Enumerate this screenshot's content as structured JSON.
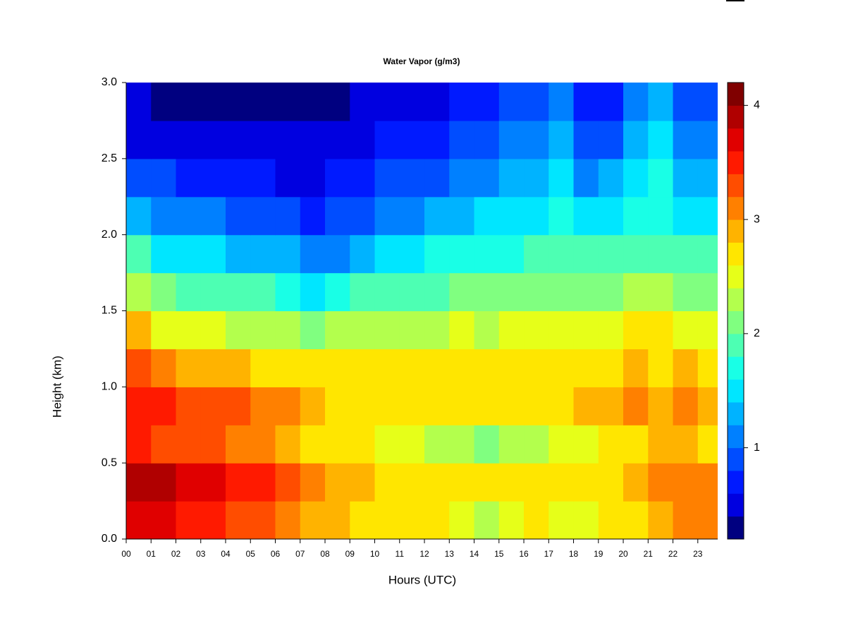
{
  "chart_data": {
    "type": "heatmap",
    "title": "Water Vapor (g/m3)",
    "x_label": "Hours (UTC)",
    "y_label": "Height (km)",
    "xlim": [
      0,
      23.8
    ],
    "ylim": [
      0,
      3
    ],
    "xticks": [
      {
        "value": 0,
        "label": "00"
      },
      {
        "value": 1,
        "label": "01"
      },
      {
        "value": 2,
        "label": "02"
      },
      {
        "value": 3,
        "label": "03"
      },
      {
        "value": 4,
        "label": "04"
      },
      {
        "value": 5,
        "label": "05"
      },
      {
        "value": 6,
        "label": "06"
      },
      {
        "value": 7,
        "label": "07"
      },
      {
        "value": 8,
        "label": "08"
      },
      {
        "value": 9,
        "label": "09"
      },
      10,
      11,
      12,
      13,
      14,
      15,
      16,
      17,
      18,
      19,
      20,
      21,
      22,
      23
    ],
    "yticks": [
      {
        "value": 0,
        "label": "0.0"
      },
      0.5,
      {
        "value": 1,
        "label": "1.0"
      },
      1.5,
      {
        "value": 2,
        "label": "2.0"
      },
      2.5,
      {
        "value": 3,
        "label": "3.0"
      }
    ],
    "zlim": [
      0.2,
      4.2
    ],
    "zticks": [
      1,
      2,
      3,
      4
    ],
    "colors": [
      "#000080",
      "#0000E0",
      "#001AFF",
      "#004DFF",
      "#0080FF",
      "#00B3FF",
      "#00E6FF",
      "#19FFE6",
      "#4DFFB3",
      "#80FF80",
      "#B3FF4D",
      "#E6FF19",
      "#FFE600",
      "#FFB300",
      "#FF8000",
      "#FF4D00",
      "#FF1A00",
      "#E00000",
      "#B00000",
      "#800000"
    ],
    "x": [
      0,
      1,
      2,
      3,
      4,
      5,
      6,
      7,
      8,
      9,
      10,
      11,
      12,
      13,
      14,
      15,
      16,
      17,
      18,
      19,
      20,
      21,
      22,
      23
    ],
    "y": [
      0,
      0.25,
      0.5,
      0.75,
      1,
      1.25,
      1.5,
      1.75,
      2,
      2.25,
      2.5,
      2.75
    ],
    "values": [
      [
        3.6,
        3.6,
        3.5,
        3.4,
        3.3,
        3.2,
        3.0,
        2.9,
        2.8,
        2.7,
        2.6,
        2.6,
        2.6,
        2.5,
        2.3,
        2.4,
        2.6,
        2.5,
        2.4,
        2.6,
        2.7,
        2.8,
        3.0,
        3.0
      ],
      [
        3.8,
        3.8,
        3.7,
        3.6,
        3.5,
        3.4,
        3.2,
        3.0,
        2.9,
        2.8,
        2.7,
        2.7,
        2.7,
        2.6,
        2.6,
        2.6,
        2.7,
        2.6,
        2.6,
        2.7,
        2.8,
        3.0,
        3.1,
        3.0
      ],
      [
        3.4,
        3.3,
        3.2,
        3.2,
        3.1,
        3.0,
        2.9,
        2.7,
        2.6,
        2.6,
        2.5,
        2.4,
        2.3,
        2.2,
        2.1,
        2.2,
        2.3,
        2.4,
        2.5,
        2.6,
        2.7,
        2.8,
        2.8,
        2.7
      ],
      [
        3.5,
        3.4,
        3.3,
        3.3,
        3.2,
        3.1,
        3.0,
        2.8,
        2.7,
        2.7,
        2.7,
        2.6,
        2.6,
        2.6,
        2.6,
        2.6,
        2.7,
        2.7,
        2.9,
        2.9,
        3.0,
        2.9,
        3.0,
        2.9
      ],
      [
        3.2,
        3.1,
        2.9,
        2.8,
        2.8,
        2.7,
        2.6,
        2.6,
        2.6,
        2.6,
        2.6,
        2.6,
        2.6,
        2.6,
        2.6,
        2.6,
        2.6,
        2.6,
        2.7,
        2.7,
        2.8,
        2.7,
        2.8,
        2.7
      ],
      [
        2.8,
        2.5,
        2.4,
        2.4,
        2.3,
        2.3,
        2.2,
        2.1,
        2.2,
        2.3,
        2.3,
        2.3,
        2.3,
        2.4,
        2.3,
        2.4,
        2.4,
        2.4,
        2.4,
        2.5,
        2.6,
        2.6,
        2.5,
        2.5
      ],
      [
        2.3,
        2.0,
        1.9,
        1.9,
        1.8,
        1.8,
        1.7,
        1.5,
        1.6,
        1.8,
        1.9,
        1.9,
        1.9,
        2.0,
        2.0,
        2.0,
        2.1,
        2.1,
        2.1,
        2.1,
        2.2,
        2.2,
        2.1,
        2.1
      ],
      [
        1.8,
        1.5,
        1.4,
        1.4,
        1.3,
        1.3,
        1.2,
        1.0,
        1.1,
        1.3,
        1.4,
        1.5,
        1.6,
        1.7,
        1.7,
        1.7,
        1.8,
        1.9,
        1.8,
        1.8,
        1.9,
        1.9,
        1.8,
        1.8
      ],
      [
        1.3,
        1.1,
        1.0,
        1.0,
        0.9,
        0.9,
        0.8,
        0.7,
        0.8,
        0.9,
        1.0,
        1.1,
        1.2,
        1.3,
        1.4,
        1.4,
        1.5,
        1.7,
        1.4,
        1.5,
        1.7,
        1.7,
        1.5,
        1.5
      ],
      [
        0.8,
        0.8,
        0.7,
        0.7,
        0.6,
        0.6,
        0.5,
        0.5,
        0.6,
        0.7,
        0.8,
        0.8,
        0.9,
        1.0,
        1.1,
        1.2,
        1.3,
        1.4,
        1.1,
        1.2,
        1.5,
        1.6,
        1.3,
        1.2
      ],
      [
        0.5,
        0.5,
        0.5,
        0.5,
        0.5,
        0.4,
        0.4,
        0.4,
        0.4,
        0.5,
        0.6,
        0.6,
        0.7,
        0.8,
        0.9,
        1.0,
        1.0,
        1.2,
        0.9,
        0.9,
        1.3,
        1.4,
        1.1,
        1.0
      ],
      [
        0.4,
        0.3,
        0.3,
        0.3,
        0.3,
        0.3,
        0.3,
        0.2,
        0.3,
        0.4,
        0.4,
        0.5,
        0.5,
        0.6,
        0.7,
        0.8,
        0.8,
        1.0,
        0.7,
        0.7,
        1.0,
        1.2,
        0.9,
        0.8
      ]
    ]
  }
}
